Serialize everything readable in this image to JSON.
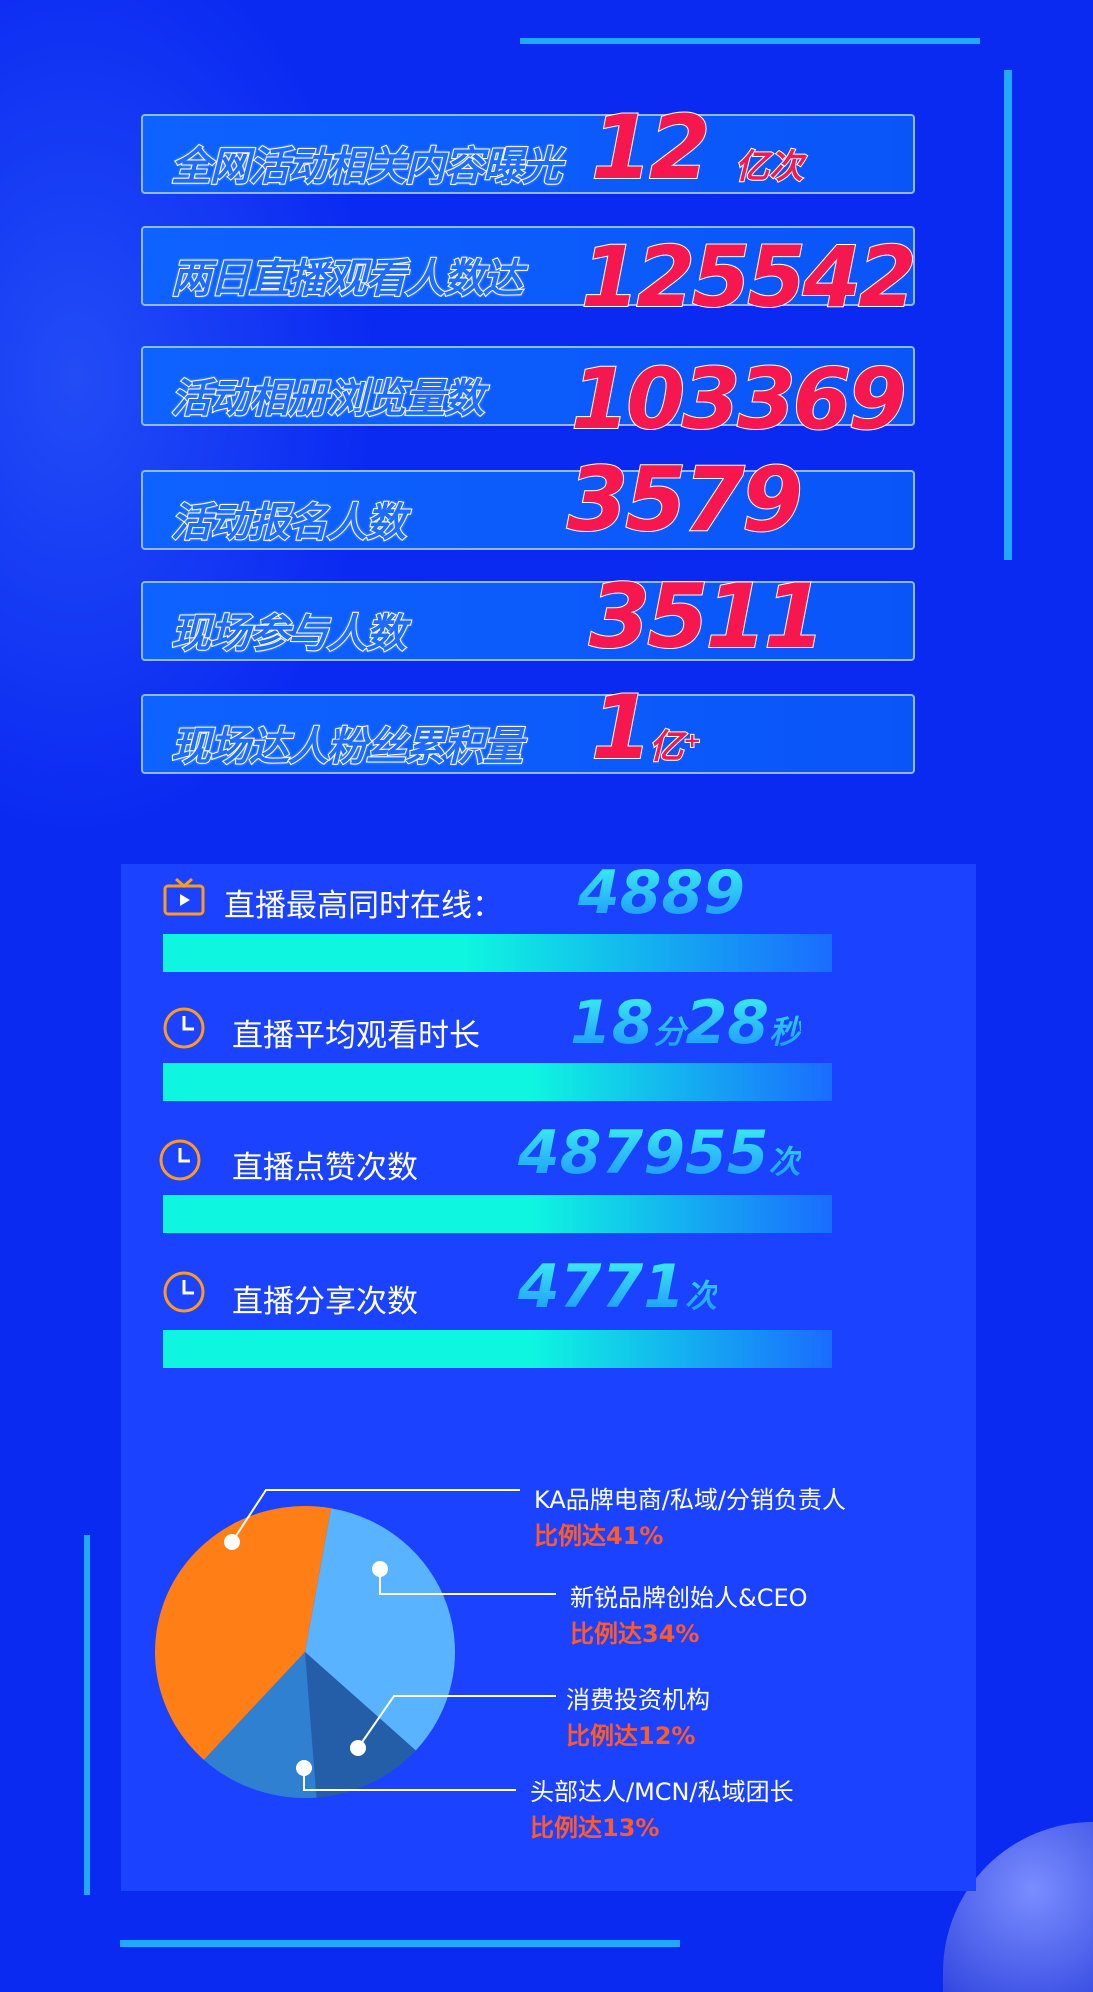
{
  "highlights": [
    {
      "label": "全网活动相关内容曝光",
      "value": "12",
      "unit": "亿次"
    },
    {
      "label": "两日直播观看人数达",
      "value": "125542",
      "unit": ""
    },
    {
      "label": "活动相册浏览量数",
      "value": "103369",
      "unit": ""
    },
    {
      "label": "活动报名人数",
      "value": "3579",
      "unit": ""
    },
    {
      "label": "现场参与人数",
      "value": "3511",
      "unit": ""
    },
    {
      "label": "现场达人粉丝累积量",
      "value": "1",
      "unit": "亿⁺"
    }
  ],
  "live_stats": [
    {
      "icon": "tv-icon",
      "label": "直播最高同时在线：",
      "value": "4889",
      "unit": ""
    },
    {
      "icon": "clock-icon",
      "label": "直播平均观看时长",
      "value": "18",
      "unit": "分",
      "value2": "28",
      "unit2": "秒"
    },
    {
      "icon": "clock-icon",
      "label": "直播点赞次数",
      "value": "487955",
      "unit": "次"
    },
    {
      "icon": "clock-icon",
      "label": "直播分享次数",
      "value": "4771",
      "unit": "次"
    }
  ],
  "colors": {
    "background": "#0a2af2",
    "panel": "#1a42ff",
    "value_red": "#f7174f",
    "percent_orange": "#ff5a2a",
    "bar_start": "#0ef6e0",
    "bar_end": "#1a6cff"
  },
  "chart_data": {
    "type": "pie",
    "slices": [
      {
        "name": "KA品牌电商/私域/分销负责人",
        "label": "比例达41%",
        "value": 41,
        "color": "#ff7e16"
      },
      {
        "name": "新锐品牌创始人&CEO",
        "label": "比例达34%",
        "value": 34,
        "color": "#5ab3ff"
      },
      {
        "name": "消费投资机构",
        "label": "比例达12%",
        "value": 12,
        "color": "#245ea8"
      },
      {
        "name": "头部达人/MCN/私域团长",
        "label": "比例达13%",
        "value": 13,
        "color": "#2f80d0"
      }
    ]
  }
}
